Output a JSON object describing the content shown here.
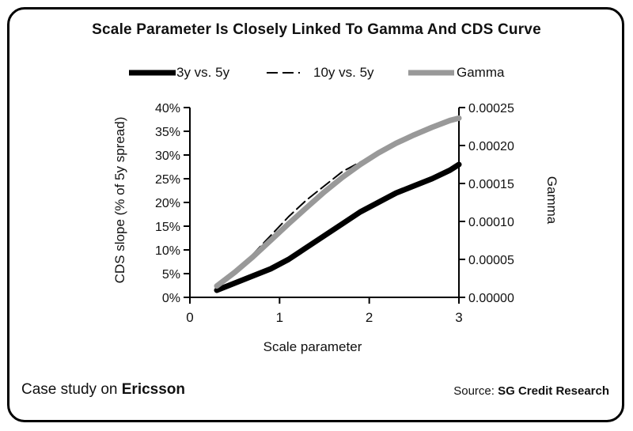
{
  "chart_data": {
    "type": "line",
    "title": "Scale Parameter Is Closely Linked To Gamma And CDS Curve",
    "xlabel": "Scale parameter",
    "ylabel_left": "CDS slope (% of 5y spread)",
    "ylabel_right": "Gamma",
    "xlim": [
      0,
      3
    ],
    "ylim_left": [
      0,
      40
    ],
    "ylim_right": [
      0,
      0.00025
    ],
    "x_ticks": [
      "0",
      "1",
      "2",
      "3"
    ],
    "y_left_ticks": [
      "0%",
      "5%",
      "10%",
      "15%",
      "20%",
      "25%",
      "30%",
      "35%",
      "40%"
    ],
    "y_right_ticks": [
      "0.00000",
      "0.00005",
      "0.00010",
      "0.00015",
      "0.00020",
      "0.00025"
    ],
    "legend_position": "top",
    "series": [
      {
        "name": "3y vs. 5y",
        "axis": "left",
        "style": "solid-black-thick",
        "color": "#000000",
        "x": [
          0.3,
          0.5,
          0.7,
          0.9,
          1.1,
          1.3,
          1.5,
          1.7,
          1.9,
          2.1,
          2.3,
          2.5,
          2.7,
          2.9,
          3.0
        ],
        "y": [
          1.5,
          3.0,
          4.5,
          6.0,
          8.0,
          10.5,
          13.0,
          15.5,
          18.0,
          20.0,
          22.0,
          23.5,
          25.0,
          26.8,
          28.0
        ]
      },
      {
        "name": "10y vs. 5y",
        "axis": "left",
        "style": "dashed-black",
        "color": "#000000",
        "x": [
          0.3,
          0.5,
          0.7,
          0.9,
          1.1,
          1.3,
          1.5,
          1.7,
          1.9,
          2.1,
          2.3,
          2.5,
          2.7,
          2.9
        ],
        "y": [
          2.5,
          5.5,
          9.0,
          13.0,
          17.0,
          20.5,
          23.5,
          26.5,
          28.5,
          30.5,
          32.5,
          34.0,
          35.5,
          37.0
        ]
      },
      {
        "name": "Gamma",
        "axis": "right",
        "style": "solid-gray-thick",
        "color": "#999999",
        "x": [
          0.3,
          0.5,
          0.7,
          0.9,
          1.1,
          1.3,
          1.5,
          1.7,
          1.9,
          2.1,
          2.3,
          2.5,
          2.7,
          2.9,
          3.0
        ],
        "y": [
          1.5e-05,
          3.3e-05,
          5.3e-05,
          7.5e-05,
          9.7e-05,
          0.000118,
          0.000139,
          0.000158,
          0.000175,
          0.00019,
          0.000203,
          0.000214,
          0.000224,
          0.000233,
          0.000236
        ]
      }
    ]
  },
  "footer": {
    "case_study_prefix": "Case study on ",
    "case_study_company": "Ericsson",
    "source_prefix": "Source: ",
    "source_name": "SG Credit Research"
  }
}
